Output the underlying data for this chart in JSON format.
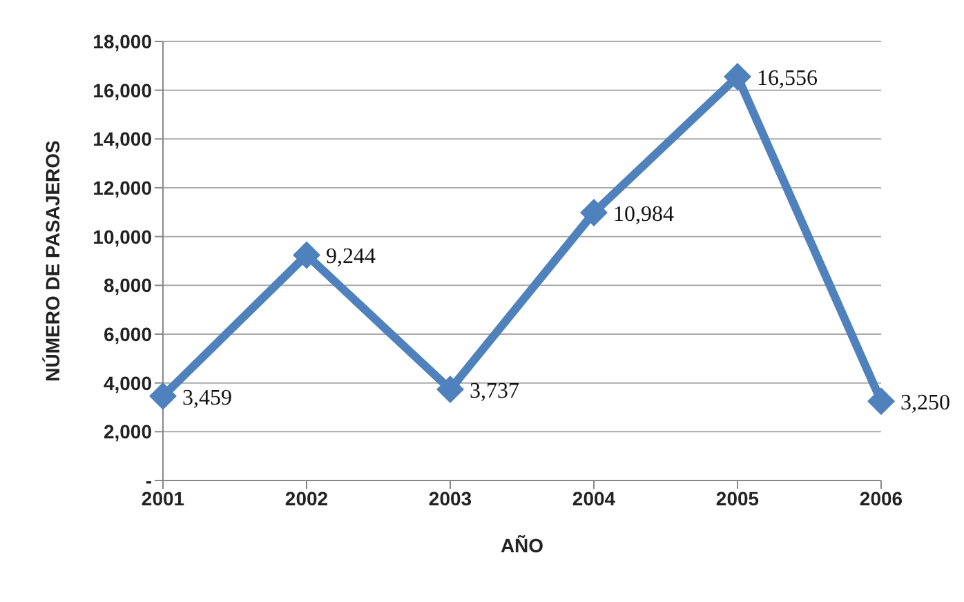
{
  "chart_data": {
    "type": "line",
    "xlabel": "AÑO",
    "ylabel": "NÚMERO DE PASAJEROS",
    "categories": [
      "2001",
      "2002",
      "2003",
      "2004",
      "2005",
      "2006"
    ],
    "series": [
      {
        "color": "#4f81bd",
        "values": [
          3459,
          9244,
          3737,
          10984,
          16556,
          3250
        ],
        "value_labels": [
          "3,459",
          "9,244",
          "3,737",
          "10,984",
          "16,556",
          "3,250"
        ]
      }
    ],
    "ylim": [
      0,
      18000
    ],
    "yticks": [
      {
        "value": 0,
        "label": "-"
      },
      {
        "value": 2000,
        "label": "2,000"
      },
      {
        "value": 4000,
        "label": "4,000"
      },
      {
        "value": 6000,
        "label": "6,000"
      },
      {
        "value": 8000,
        "label": "8,000"
      },
      {
        "value": 10000,
        "label": "10,000"
      },
      {
        "value": 12000,
        "label": "12,000"
      },
      {
        "value": 14000,
        "label": "14,000"
      },
      {
        "value": 16000,
        "label": "16,000"
      },
      {
        "value": 18000,
        "label": "18,000"
      }
    ],
    "grid": "y",
    "marker": "diamond",
    "line_style": "solid",
    "legend": false
  }
}
